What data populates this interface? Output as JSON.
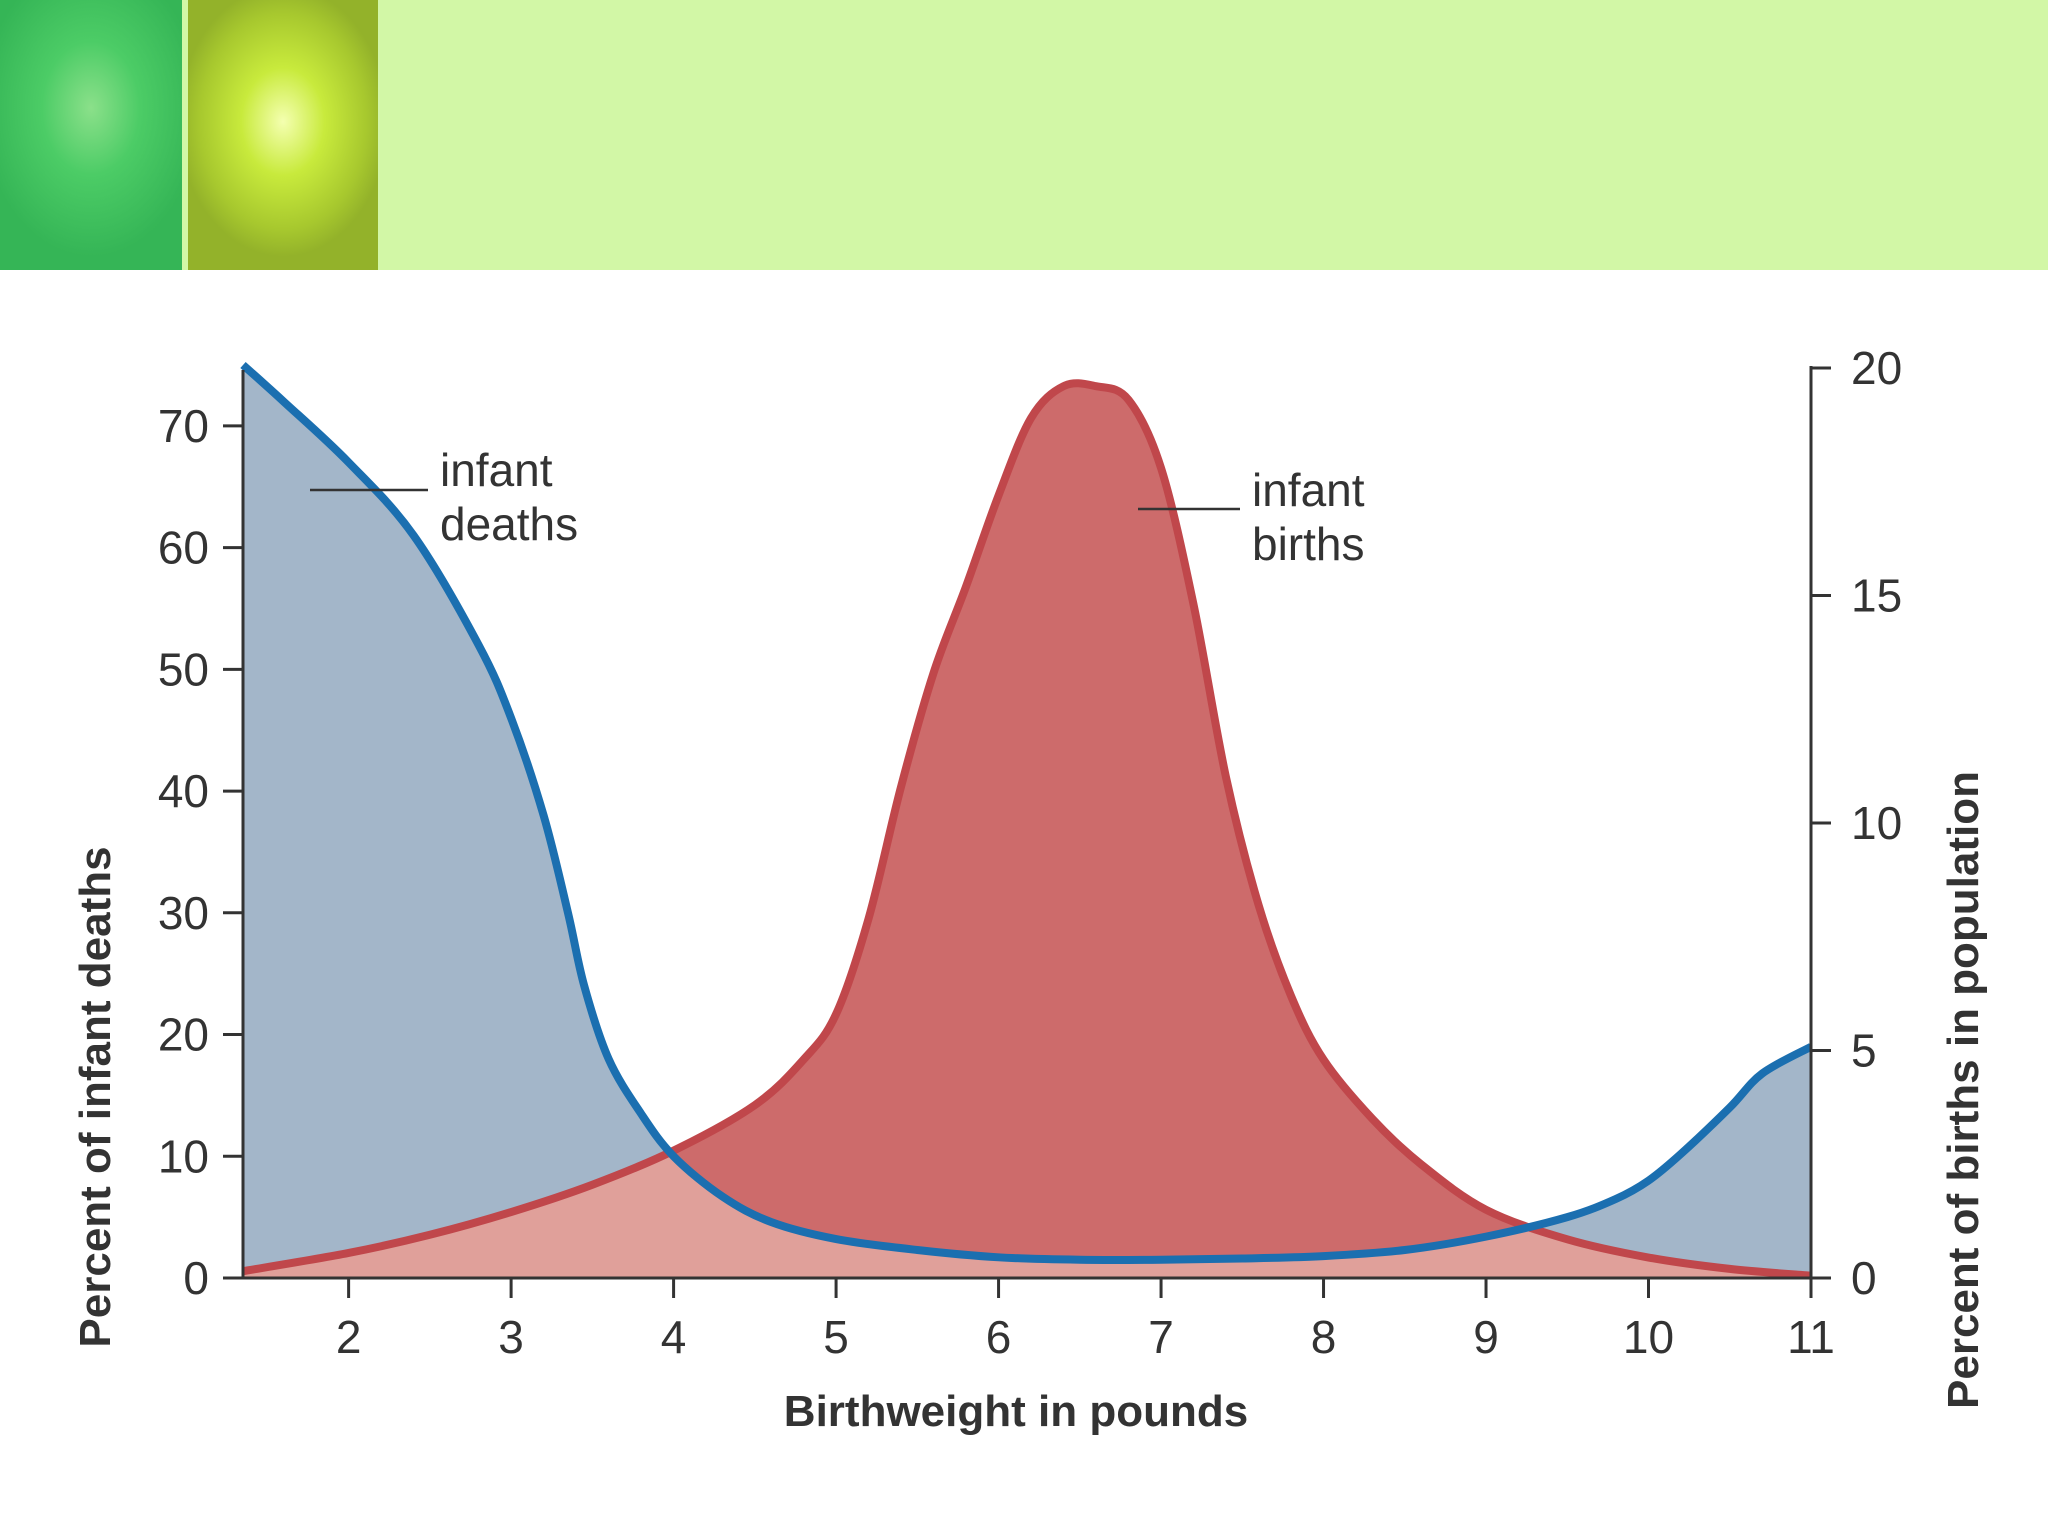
{
  "chart_data": {
    "type": "area",
    "xlabel": "Birthweight in pounds",
    "ylabel_left": "Percent of infant deaths",
    "ylabel_right": "Percent of births in population",
    "x_ticks": [
      2,
      3,
      4,
      5,
      6,
      7,
      8,
      9,
      10,
      11
    ],
    "xlim": [
      1.35,
      11
    ],
    "y_left_ticks": [
      0,
      10,
      20,
      30,
      40,
      50,
      60,
      70
    ],
    "y_left_lim": [
      0,
      75
    ],
    "y_right_ticks": [
      0,
      5,
      10,
      15,
      20
    ],
    "y_right_lim": [
      0,
      20
    ],
    "series": [
      {
        "name": "infant deaths",
        "axis": "left",
        "line_color": "#1b6fb0",
        "fill_color": "#a3b6c9",
        "x": [
          1.35,
          1.6,
          2.0,
          2.4,
          2.8,
          3.0,
          3.2,
          3.35,
          3.45,
          3.6,
          3.8,
          4.0,
          4.3,
          4.6,
          5.0,
          5.5,
          6.0,
          6.5,
          7.0,
          7.5,
          8.0,
          8.5,
          9.0,
          9.5,
          9.8,
          10.0,
          10.2,
          10.5,
          10.7,
          11.0
        ],
        "y": [
          75,
          72,
          67,
          61,
          52,
          46,
          38,
          30,
          24,
          18,
          13.5,
          10,
          6.7,
          4.6,
          3.2,
          2.3,
          1.7,
          1.5,
          1.5,
          1.6,
          1.8,
          2.3,
          3.4,
          5.0,
          6.5,
          8.0,
          10.2,
          14,
          16.8,
          19
        ]
      },
      {
        "name": "infant births",
        "axis": "right",
        "line_color": "#c0474b",
        "fill_color": "#cd6b6b",
        "fill_color_low": "#e0a09a",
        "x": [
          1.35,
          2.0,
          2.5,
          3.0,
          3.5,
          4.0,
          4.5,
          4.8,
          5.0,
          5.2,
          5.4,
          5.6,
          5.8,
          6.0,
          6.2,
          6.4,
          6.6,
          6.8,
          7.0,
          7.2,
          7.4,
          7.6,
          7.8,
          8.0,
          8.3,
          8.6,
          9.0,
          9.5,
          10.0,
          10.5,
          11.0
        ],
        "y": [
          0.15,
          0.55,
          0.95,
          1.45,
          2.05,
          2.8,
          3.8,
          4.8,
          5.8,
          7.9,
          10.8,
          13.3,
          15.2,
          17.2,
          18.9,
          19.6,
          19.6,
          19.3,
          17.8,
          14.8,
          11.0,
          8.2,
          6.2,
          4.8,
          3.5,
          2.5,
          1.5,
          0.85,
          0.45,
          0.2,
          0.05
        ]
      }
    ],
    "annotations": [
      {
        "lines": [
          "infant",
          "deaths"
        ]
      },
      {
        "lines": [
          "infant",
          "births"
        ]
      }
    ]
  }
}
